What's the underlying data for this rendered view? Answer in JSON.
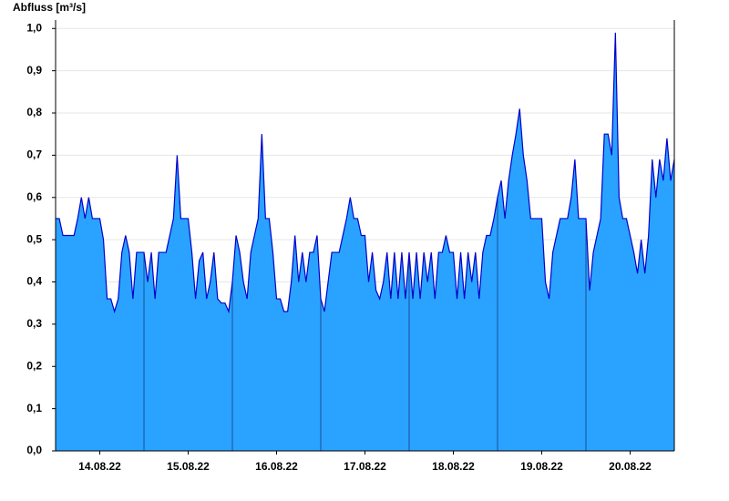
{
  "chart_data": {
    "type": "area",
    "title": "Abfluss [m³/s]",
    "x": [
      0,
      1,
      2,
      3,
      4,
      5,
      6,
      7,
      8,
      9,
      10,
      11,
      12,
      13,
      14,
      15,
      16,
      17,
      18,
      19,
      20,
      21,
      22,
      23,
      24,
      25,
      26,
      27,
      28,
      29,
      30,
      31,
      32,
      33,
      34,
      35,
      36,
      37,
      38,
      39,
      40,
      41,
      42,
      43,
      44,
      45,
      46,
      47,
      48,
      49,
      50,
      51,
      52,
      53,
      54,
      55,
      56,
      57,
      58,
      59,
      60,
      61,
      62,
      63,
      64,
      65,
      66,
      67,
      68,
      69,
      70,
      71,
      72,
      73,
      74,
      75,
      76,
      77,
      78,
      79,
      80,
      81,
      82,
      83,
      84,
      85,
      86,
      87,
      88,
      89,
      90,
      91,
      92,
      93,
      94,
      95,
      96,
      97,
      98,
      99,
      100,
      101,
      102,
      103,
      104,
      105,
      106,
      107,
      108,
      109,
      110,
      111,
      112,
      113,
      114,
      115,
      116,
      117,
      118,
      119,
      120,
      121,
      122,
      123,
      124,
      125,
      126,
      127,
      128,
      129,
      130,
      131,
      132,
      133,
      134,
      135,
      136,
      137,
      138,
      139,
      140,
      141,
      142,
      143,
      144,
      145,
      146,
      147,
      148,
      149,
      150,
      151,
      152,
      153,
      154,
      155,
      156,
      157,
      158,
      159,
      160,
      161,
      162,
      163,
      164,
      165,
      166,
      167,
      168
    ],
    "series": [
      {
        "name": "Abfluss",
        "color": "#29a3ff",
        "line_color": "#0000cc",
        "values": [
          0.55,
          0.55,
          0.51,
          0.51,
          0.51,
          0.51,
          0.55,
          0.6,
          0.55,
          0.6,
          0.55,
          0.55,
          0.55,
          0.5,
          0.36,
          0.36,
          0.33,
          0.36,
          0.47,
          0.51,
          0.47,
          0.36,
          0.47,
          0.47,
          0.47,
          0.4,
          0.47,
          0.36,
          0.47,
          0.47,
          0.47,
          0.51,
          0.55,
          0.7,
          0.55,
          0.55,
          0.55,
          0.47,
          0.36,
          0.45,
          0.47,
          0.36,
          0.4,
          0.47,
          0.36,
          0.35,
          0.35,
          0.33,
          0.4,
          0.51,
          0.47,
          0.4,
          0.36,
          0.47,
          0.51,
          0.55,
          0.75,
          0.55,
          0.55,
          0.47,
          0.36,
          0.36,
          0.33,
          0.33,
          0.4,
          0.51,
          0.4,
          0.47,
          0.4,
          0.47,
          0.47,
          0.51,
          0.36,
          0.33,
          0.4,
          0.47,
          0.47,
          0.47,
          0.51,
          0.55,
          0.6,
          0.55,
          0.55,
          0.51,
          0.51,
          0.4,
          0.47,
          0.38,
          0.36,
          0.4,
          0.47,
          0.36,
          0.47,
          0.36,
          0.47,
          0.36,
          0.47,
          0.36,
          0.47,
          0.36,
          0.47,
          0.4,
          0.47,
          0.36,
          0.47,
          0.47,
          0.51,
          0.47,
          0.47,
          0.36,
          0.47,
          0.36,
          0.47,
          0.4,
          0.47,
          0.36,
          0.47,
          0.51,
          0.51,
          0.55,
          0.6,
          0.64,
          0.55,
          0.64,
          0.7,
          0.75,
          0.81,
          0.7,
          0.64,
          0.55,
          0.55,
          0.55,
          0.55,
          0.4,
          0.36,
          0.47,
          0.51,
          0.55,
          0.55,
          0.55,
          0.6,
          0.69,
          0.55,
          0.55,
          0.55,
          0.38,
          0.47,
          0.51,
          0.55,
          0.75,
          0.75,
          0.7,
          0.99,
          0.6,
          0.55,
          0.55,
          0.51,
          0.47,
          0.42,
          0.5,
          0.42,
          0.51,
          0.69,
          0.6,
          0.69,
          0.64,
          0.74,
          0.64,
          0.69
        ]
      }
    ],
    "xlim": [
      0,
      168
    ],
    "xticks": [
      {
        "value": 12,
        "label": "14.08.22"
      },
      {
        "value": 36,
        "label": "15.08.22"
      },
      {
        "value": 60,
        "label": "16.08.22"
      },
      {
        "value": 84,
        "label": "17.08.22"
      },
      {
        "value": 108,
        "label": "18.08.22"
      },
      {
        "value": 132,
        "label": "19.08.22"
      },
      {
        "value": 156,
        "label": "20.08.22"
      }
    ],
    "ylim": [
      0,
      1.02
    ],
    "yticks": [
      {
        "value": 0,
        "label": "0,0"
      },
      {
        "value": 0.1,
        "label": "0,1"
      },
      {
        "value": 0.2,
        "label": "0,2"
      },
      {
        "value": 0.3,
        "label": "0,3"
      },
      {
        "value": 0.4,
        "label": "0,4"
      },
      {
        "value": 0.5,
        "label": "0,5"
      },
      {
        "value": 0.6,
        "label": "0,6"
      },
      {
        "value": 0.7,
        "label": "0,7"
      },
      {
        "value": 0.8,
        "label": "0,8"
      },
      {
        "value": 0.9,
        "label": "0,9"
      },
      {
        "value": 1.0,
        "label": "1,0"
      }
    ],
    "grid": true
  }
}
